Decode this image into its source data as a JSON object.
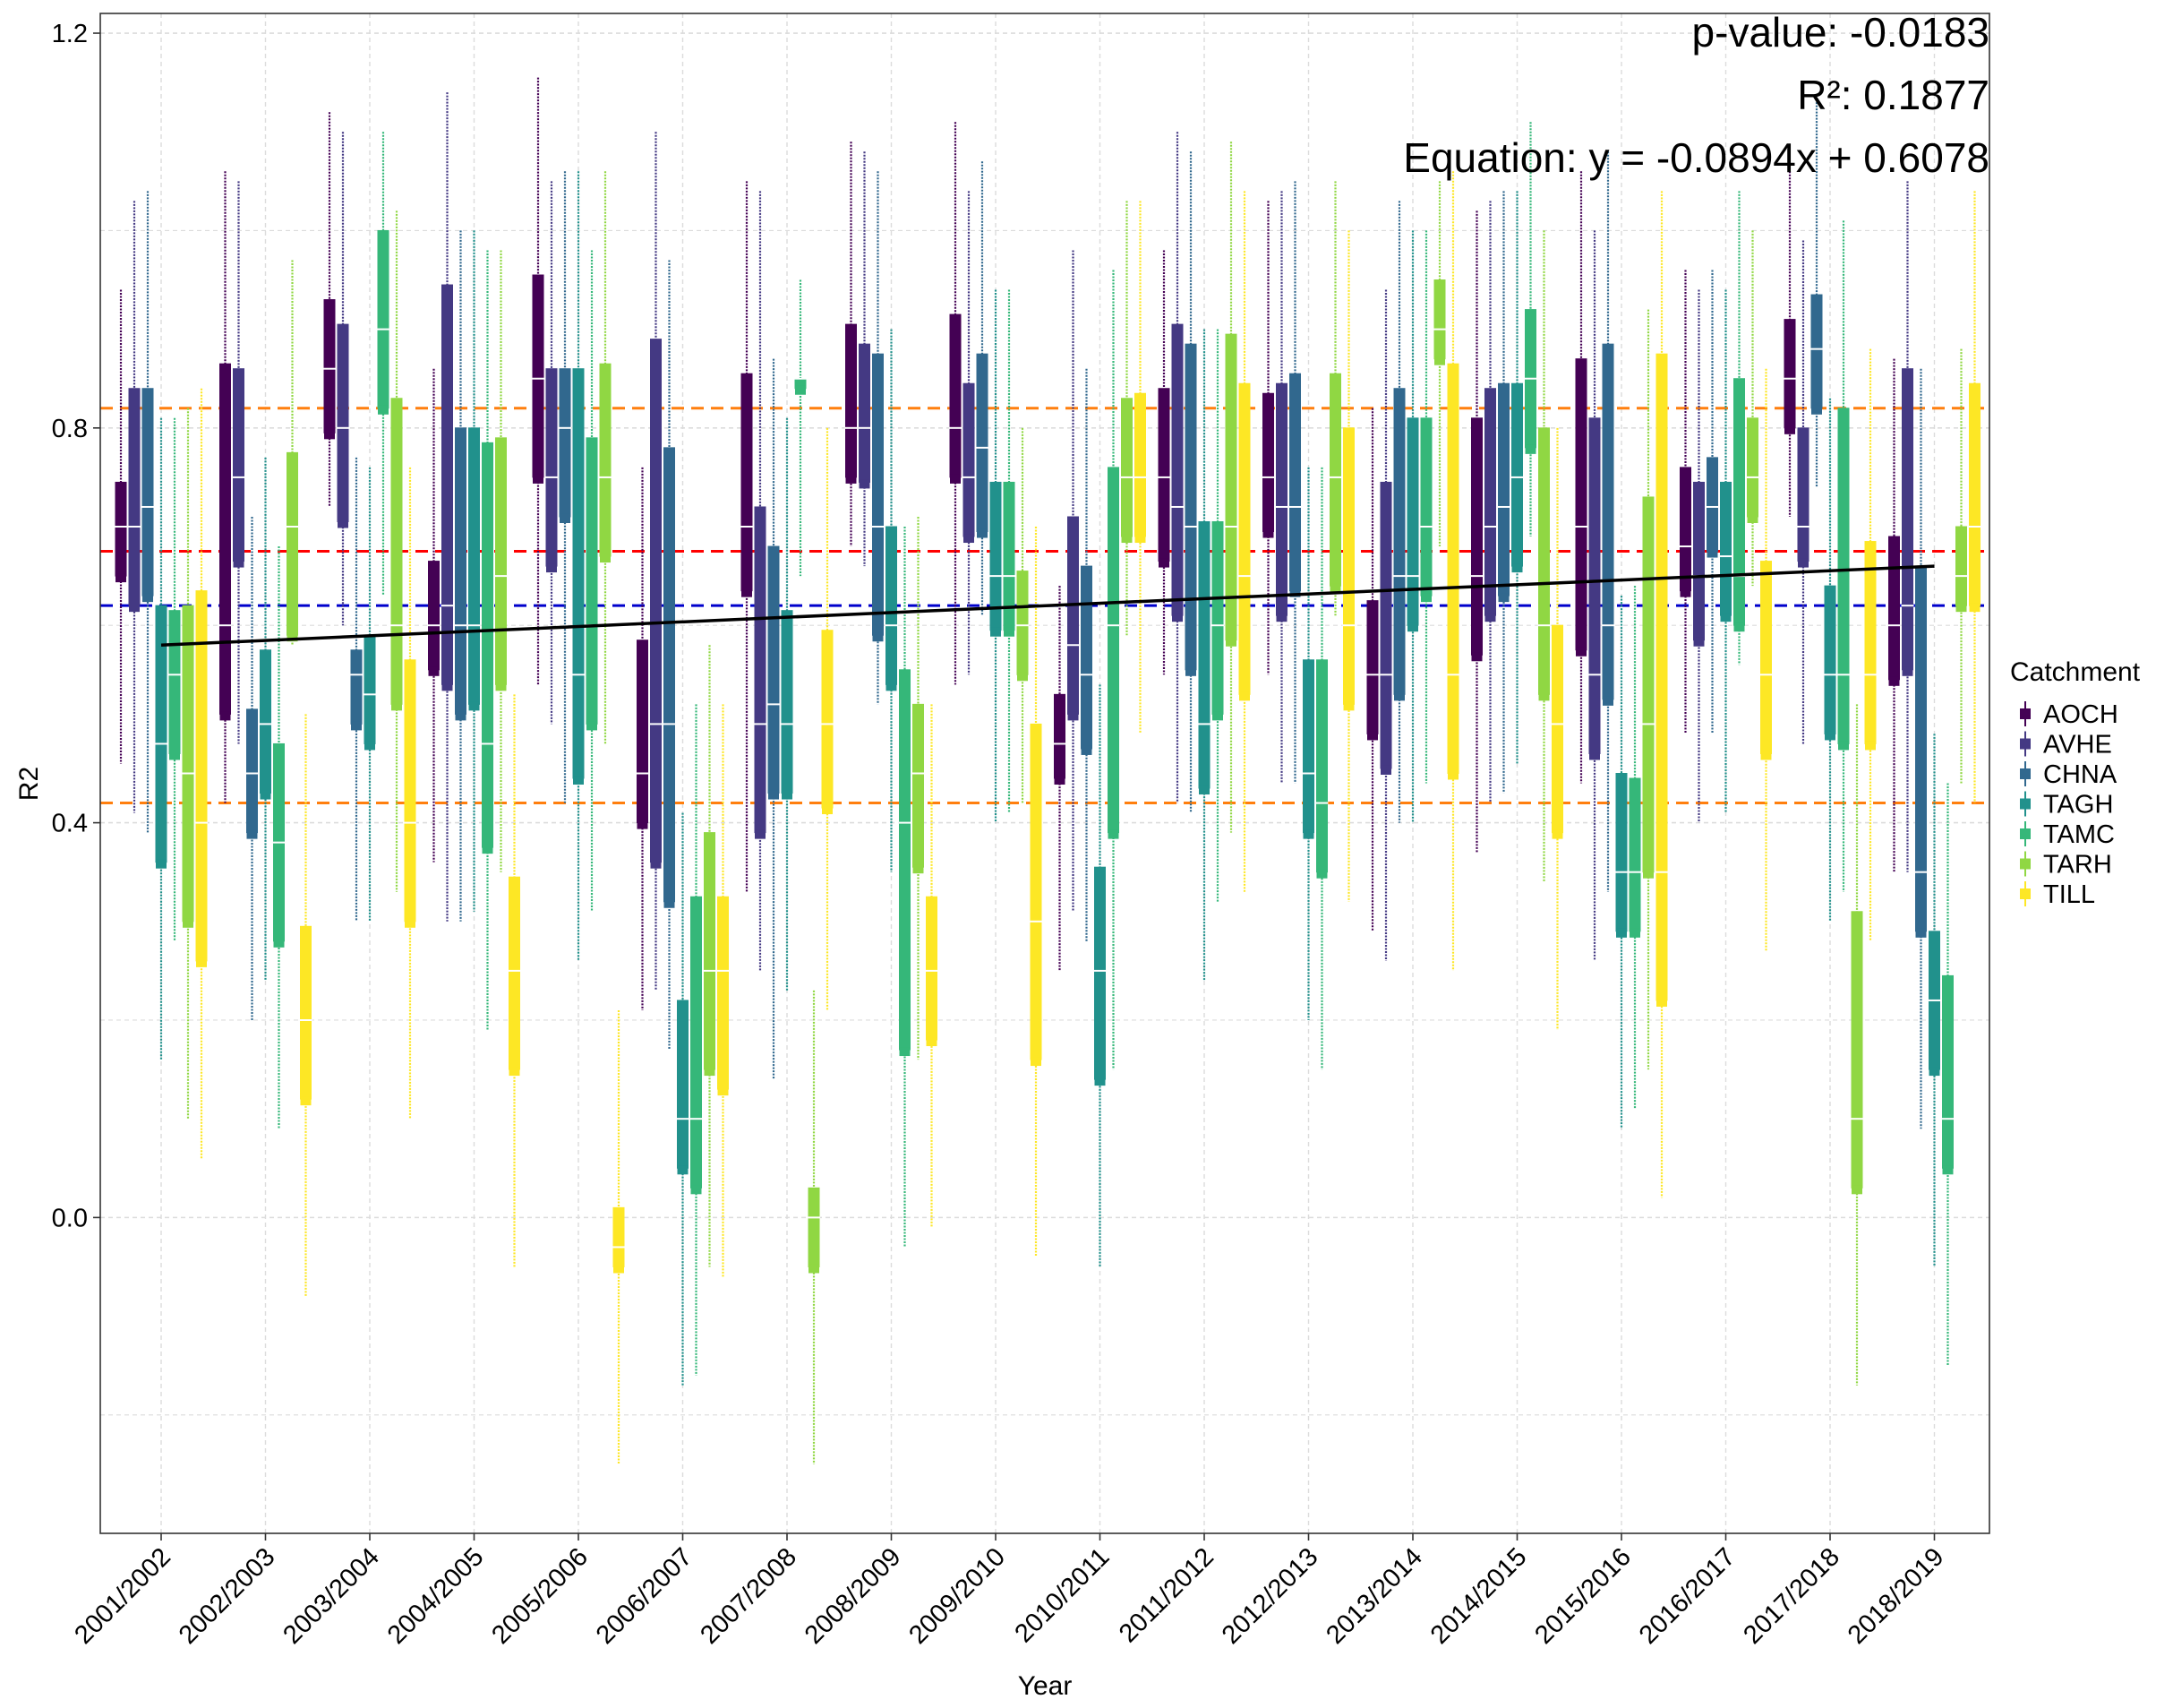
{
  "chart_data": {
    "type": "box",
    "xlabel": "Year",
    "ylabel": "R2",
    "ylim": [
      -0.32,
      1.22
    ],
    "yticks": [
      0.0,
      0.4,
      0.8,
      1.2
    ],
    "ytick_labels": [
      "0.0",
      "0.4",
      "0.8",
      "1.2"
    ],
    "categories": [
      "2001/2002",
      "2002/2003",
      "2003/2004",
      "2004/2005",
      "2005/2006",
      "2006/2007",
      "2007/2008",
      "2008/2009",
      "2009/2010",
      "2010/2011",
      "2011/2012",
      "2012/2013",
      "2013/2014",
      "2014/2015",
      "2015/2016",
      "2016/2017",
      "2017/2018",
      "2018/2019"
    ],
    "grid": true,
    "legend": {
      "title": "Catchment",
      "position": "right",
      "entries": [
        "AOCH",
        "AVHE",
        "CHNA",
        "TAGH",
        "TAMC",
        "TARH",
        "TILL"
      ]
    },
    "series_colors": [
      "#440154",
      "#443983",
      "#31688e",
      "#21918c",
      "#35b779",
      "#90d743",
      "#fde725"
    ],
    "annotations": {
      "pvalue": "p-value: -0.0183",
      "r2": "R²: 0.1877",
      "equation": "Equation: y = -0.0894x + 0.6078"
    },
    "hlines": [
      {
        "y": 0.82,
        "color": "#ff7f0e",
        "style": "dashed"
      },
      {
        "y": 0.42,
        "color": "#ff7f0e",
        "style": "dashed"
      },
      {
        "y": 0.675,
        "color": "#ff0000",
        "style": "dashed"
      },
      {
        "y": 0.62,
        "color": "#0000cc",
        "style": "dashed"
      }
    ],
    "trend_line": {
      "x_start": "2001/2002",
      "x_end": "2018/2019",
      "y_start": 0.58,
      "y_end": 0.66,
      "color": "#000000"
    },
    "series": [
      {
        "name": "AOCH",
        "boxes": [
          [
            0.46,
            0.65,
            0.7,
            0.745,
            0.94
          ],
          [
            0.42,
            0.51,
            0.6,
            0.865,
            1.06
          ],
          [
            0.72,
            0.795,
            0.86,
            0.93,
            1.12
          ],
          [
            0.36,
            0.555,
            0.6,
            0.665,
            0.86
          ],
          [
            0.54,
            0.75,
            0.85,
            0.955,
            1.155
          ],
          [
            0.21,
            0.4,
            0.45,
            0.585,
            0.76
          ],
          [
            0.33,
            0.635,
            0.7,
            0.855,
            1.05
          ],
          [
            0.68,
            0.75,
            0.8,
            0.905,
            1.09
          ],
          [
            0.54,
            0.75,
            0.8,
            0.915,
            1.11
          ],
          [
            0.25,
            0.445,
            0.48,
            0.53,
            0.64
          ],
          [
            0.55,
            0.665,
            0.75,
            0.84,
            0.98
          ],
          [
            0.55,
            0.695,
            0.75,
            0.835,
            1.03
          ],
          [
            0.29,
            0.49,
            0.55,
            0.625,
            0.82
          ],
          [
            0.37,
            0.57,
            0.65,
            0.81,
            1.02
          ],
          [
            0.44,
            0.575,
            0.7,
            0.87,
            1.06
          ],
          [
            0.49,
            0.635,
            0.68,
            0.76,
            0.96
          ],
          [
            0.71,
            0.8,
            0.85,
            0.91,
            1.06
          ],
          [
            0.35,
            0.545,
            0.6,
            0.69,
            0.87
          ]
        ]
      },
      {
        "name": "AVHE",
        "boxes": [
          [
            0.41,
            0.62,
            0.7,
            0.84,
            1.03
          ],
          [
            0.48,
            0.665,
            0.75,
            0.86,
            1.05
          ],
          [
            0.6,
            0.705,
            0.8,
            0.905,
            1.1
          ],
          [
            0.3,
            0.54,
            0.62,
            0.945,
            1.14
          ],
          [
            0.5,
            0.66,
            0.75,
            0.86,
            1.05
          ],
          [
            0.23,
            0.36,
            0.5,
            0.89,
            1.1
          ],
          [
            0.25,
            0.39,
            0.5,
            0.72,
            1.04
          ],
          [
            0.66,
            0.745,
            0.8,
            0.885,
            1.08
          ],
          [
            0.55,
            0.69,
            0.75,
            0.845,
            1.04
          ],
          [
            0.31,
            0.51,
            0.58,
            0.71,
            0.98
          ],
          [
            0.42,
            0.61,
            0.72,
            0.905,
            1.1
          ],
          [
            0.44,
            0.61,
            0.72,
            0.845,
            1.04
          ],
          [
            0.26,
            0.455,
            0.55,
            0.745,
            0.94
          ],
          [
            0.42,
            0.61,
            0.7,
            0.84,
            1.03
          ],
          [
            0.26,
            0.47,
            0.55,
            0.81,
            1.0
          ],
          [
            0.4,
            0.585,
            0.65,
            0.745,
            0.94
          ],
          [
            0.48,
            0.665,
            0.7,
            0.8,
            0.99
          ],
          [
            0.35,
            0.555,
            0.62,
            0.86,
            1.05
          ]
        ]
      },
      {
        "name": "CHNA",
        "boxes": [
          [
            0.39,
            0.63,
            0.72,
            0.84,
            1.04
          ],
          [
            0.2,
            0.39,
            0.45,
            0.515,
            0.71
          ],
          [
            0.3,
            0.5,
            0.55,
            0.575,
            0.77
          ],
          [
            0.3,
            0.51,
            0.6,
            0.8,
            1.0
          ],
          [
            0.42,
            0.71,
            0.8,
            0.86,
            1.06
          ],
          [
            0.17,
            0.32,
            0.5,
            0.78,
            0.97
          ],
          [
            0.14,
            0.43,
            0.52,
            0.68,
            0.87
          ],
          [
            0.52,
            0.59,
            0.7,
            0.875,
            1.06
          ],
          [
            0.61,
            0.695,
            0.78,
            0.875,
            1.07
          ],
          [
            0.28,
            0.475,
            0.55,
            0.66,
            0.86
          ],
          [
            0.41,
            0.555,
            0.7,
            0.885,
            1.08
          ],
          [
            0.44,
            0.635,
            0.72,
            0.855,
            1.05
          ],
          [
            0.4,
            0.53,
            0.65,
            0.84,
            1.03
          ],
          [
            0.43,
            0.63,
            0.72,
            0.845,
            1.04
          ],
          [
            0.33,
            0.525,
            0.6,
            0.885,
            1.08
          ],
          [
            0.49,
            0.675,
            0.72,
            0.77,
            0.96
          ],
          [
            0.74,
            0.82,
            0.88,
            0.935,
            1.13
          ],
          [
            0.09,
            0.29,
            0.35,
            0.66,
            0.86
          ]
        ]
      },
      {
        "name": "TAGH",
        "boxes": [
          [
            0.16,
            0.36,
            0.48,
            0.62,
            0.81
          ],
          [
            0.24,
            0.43,
            0.5,
            0.575,
            0.77
          ],
          [
            0.3,
            0.48,
            0.53,
            0.59,
            0.76
          ],
          [
            0.31,
            0.52,
            0.6,
            0.8,
            1.0
          ],
          [
            0.26,
            0.445,
            0.55,
            0.86,
            1.06
          ],
          [
            -0.17,
            0.05,
            0.1,
            0.22,
            0.41
          ],
          [
            0.23,
            0.43,
            0.5,
            0.615,
            0.81
          ],
          [
            0.35,
            0.54,
            0.6,
            0.7,
            0.9
          ],
          [
            0.4,
            0.595,
            0.65,
            0.745,
            0.94
          ],
          [
            -0.05,
            0.14,
            0.25,
            0.355,
            0.54
          ],
          [
            0.24,
            0.435,
            0.5,
            0.705,
            0.9
          ],
          [
            0.2,
            0.39,
            0.45,
            0.565,
            0.76
          ],
          [
            0.4,
            0.6,
            0.65,
            0.81,
            1.0
          ],
          [
            0.46,
            0.66,
            0.75,
            0.845,
            1.04
          ],
          [
            0.09,
            0.29,
            0.35,
            0.45,
            0.63
          ],
          [
            0.41,
            0.61,
            0.67,
            0.745,
            0.94
          ],
          [
            0.3,
            0.49,
            0.55,
            0.64,
            0.83
          ],
          [
            -0.05,
            0.15,
            0.22,
            0.29,
            0.49
          ]
        ]
      },
      {
        "name": "TAMC",
        "boxes": [
          [
            0.28,
            0.47,
            0.55,
            0.615,
            0.81
          ],
          [
            0.09,
            0.28,
            0.38,
            0.48,
            0.68
          ],
          [
            0.63,
            0.82,
            0.9,
            1.0,
            1.1
          ],
          [
            0.19,
            0.375,
            0.48,
            0.785,
            0.98
          ],
          [
            0.31,
            0.5,
            0.6,
            0.79,
            0.98
          ],
          [
            -0.16,
            0.03,
            0.1,
            0.325,
            0.52
          ],
          [
            0.65,
            0.84,
            0.85,
            0.85,
            0.95
          ],
          [
            -0.03,
            0.17,
            0.4,
            0.555,
            0.7
          ],
          [
            0.41,
            0.595,
            0.65,
            0.745,
            0.94
          ],
          [
            0.15,
            0.39,
            0.6,
            0.76,
            0.96
          ],
          [
            0.32,
            0.51,
            0.6,
            0.705,
            0.9
          ],
          [
            0.15,
            0.35,
            0.42,
            0.565,
            0.76
          ],
          [
            0.44,
            0.63,
            0.7,
            0.81,
            1.0
          ],
          [
            0.69,
            0.78,
            0.85,
            0.92,
            1.11
          ],
          [
            0.11,
            0.29,
            0.35,
            0.445,
            0.64
          ],
          [
            0.56,
            0.6,
            0.65,
            0.85,
            1.04
          ],
          [
            0.33,
            0.48,
            0.55,
            0.82,
            1.01
          ],
          [
            -0.15,
            0.05,
            0.1,
            0.245,
            0.44
          ]
        ]
      },
      {
        "name": "TARH",
        "boxes": [
          [
            0.1,
            0.3,
            0.45,
            0.62,
            0.82
          ],
          [
            0.58,
            0.59,
            0.7,
            0.775,
            0.97
          ],
          [
            0.33,
            0.52,
            0.6,
            0.83,
            1.02
          ],
          [
            0.35,
            0.54,
            0.65,
            0.79,
            0.98
          ],
          [
            0.48,
            0.67,
            0.75,
            0.865,
            1.06
          ],
          [
            -0.05,
            0.15,
            0.25,
            0.39,
            0.58
          ],
          [
            -0.25,
            -0.05,
            0.0,
            0.03,
            0.23
          ],
          [
            0.16,
            0.355,
            0.45,
            0.52,
            0.71
          ],
          [
            0.42,
            0.55,
            0.6,
            0.655,
            0.8
          ],
          [
            0.59,
            0.69,
            0.75,
            0.83,
            1.03
          ],
          [
            0.39,
            0.585,
            0.7,
            0.895,
            1.09
          ],
          [
            0.61,
            0.64,
            0.75,
            0.855,
            1.05
          ],
          [
            0.68,
            0.87,
            0.9,
            0.95,
            1.05
          ],
          [
            0.34,
            0.53,
            0.6,
            0.8,
            1.0
          ],
          [
            0.15,
            0.35,
            0.5,
            0.73,
            0.92
          ],
          [
            0.64,
            0.71,
            0.75,
            0.81,
            1.0
          ],
          [
            -0.17,
            0.03,
            0.1,
            0.31,
            0.52
          ],
          [
            0.44,
            0.62,
            0.65,
            0.7,
            0.88
          ]
        ]
      },
      {
        "name": "TILL",
        "boxes": [
          [
            0.06,
            0.26,
            0.4,
            0.635,
            0.84
          ],
          [
            -0.08,
            0.12,
            0.2,
            0.295,
            0.51
          ],
          [
            0.1,
            0.3,
            0.4,
            0.565,
            0.76
          ],
          [
            -0.05,
            0.15,
            0.25,
            0.345,
            0.53
          ],
          [
            -0.25,
            -0.05,
            -0.03,
            0.01,
            0.21
          ],
          [
            -0.06,
            0.13,
            0.25,
            0.325,
            0.52
          ],
          [
            0.21,
            0.415,
            0.5,
            0.595,
            0.8
          ],
          [
            -0.01,
            0.18,
            0.25,
            0.325,
            0.52
          ],
          [
            -0.04,
            0.16,
            0.3,
            0.5,
            0.7
          ],
          [
            0.49,
            0.69,
            0.75,
            0.835,
            1.03
          ],
          [
            0.33,
            0.53,
            0.65,
            0.845,
            1.04
          ],
          [
            0.32,
            0.52,
            0.6,
            0.8,
            1.0
          ],
          [
            0.25,
            0.45,
            0.55,
            0.865,
            1.06
          ],
          [
            0.19,
            0.39,
            0.5,
            0.6,
            0.8
          ],
          [
            0.02,
            0.22,
            0.35,
            0.875,
            1.04
          ],
          [
            0.27,
            0.47,
            0.55,
            0.665,
            0.86
          ],
          [
            0.28,
            0.48,
            0.55,
            0.685,
            0.88
          ],
          [
            0.42,
            0.62,
            0.7,
            0.845,
            1.04
          ]
        ]
      }
    ]
  }
}
